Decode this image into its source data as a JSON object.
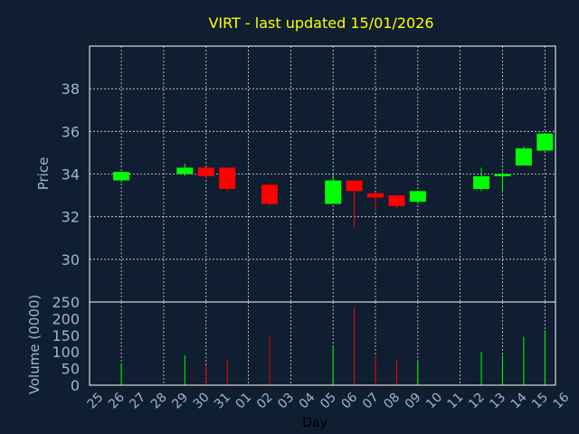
{
  "chart_data": {
    "type": "candlestick",
    "title": "VIRT - last updated 15/01/2026",
    "xlabel": "Day",
    "colors": {
      "background": "#0f1e30",
      "up": "#00ff00",
      "down": "#ff0000",
      "title": "#ffff00",
      "tick": "#9fb5cf",
      "grid": "#ffffff"
    },
    "grid": true,
    "x_ticks": [
      "25",
      "26",
      "27",
      "28",
      "29",
      "30",
      "31",
      "01",
      "02",
      "03",
      "04",
      "05",
      "06",
      "07",
      "08",
      "09",
      "10",
      "11",
      "12",
      "13",
      "14",
      "15",
      "16"
    ],
    "price_panel": {
      "ylabel": "Price",
      "ylim": [
        28,
        40
      ],
      "yticks": [
        "30",
        "32",
        "34",
        "36",
        "38"
      ]
    },
    "volume_panel": {
      "ylabel": "Volume (0000)",
      "ylim": [
        0,
        250
      ],
      "yticks": [
        "0",
        "50",
        "100",
        "150",
        "200",
        "250"
      ]
    },
    "candles": [
      {
        "day": "26",
        "open": 33.7,
        "high": 34.1,
        "low": 33.6,
        "close": 34.1,
        "volume": 65
      },
      {
        "day": "29",
        "open": 34.0,
        "high": 34.5,
        "low": 33.9,
        "close": 34.3,
        "volume": 90
      },
      {
        "day": "30",
        "open": 34.3,
        "high": 34.3,
        "low": 33.8,
        "close": 33.9,
        "volume": 60
      },
      {
        "day": "31",
        "open": 34.3,
        "high": 34.3,
        "low": 33.2,
        "close": 33.3,
        "volume": 75
      },
      {
        "day": "02",
        "open": 33.5,
        "high": 33.6,
        "low": 32.5,
        "close": 32.6,
        "volume": 150
      },
      {
        "day": "05",
        "open": 32.6,
        "high": 34.0,
        "low": 32.6,
        "close": 33.7,
        "volume": 120
      },
      {
        "day": "06",
        "open": 33.7,
        "high": 33.7,
        "low": 31.5,
        "close": 33.2,
        "volume": 235
      },
      {
        "day": "07",
        "open": 33.1,
        "high": 33.1,
        "low": 32.3,
        "close": 32.9,
        "volume": 90
      },
      {
        "day": "08",
        "open": 33.0,
        "high": 33.0,
        "low": 32.4,
        "close": 32.5,
        "volume": 75
      },
      {
        "day": "09",
        "open": 32.7,
        "high": 33.2,
        "low": 32.6,
        "close": 33.2,
        "volume": 75
      },
      {
        "day": "12",
        "open": 33.3,
        "high": 34.3,
        "low": 33.2,
        "close": 33.9,
        "volume": 100
      },
      {
        "day": "13",
        "open": 33.9,
        "high": 34.1,
        "low": 33.2,
        "close": 34.0,
        "volume": 90
      },
      {
        "day": "14",
        "open": 34.4,
        "high": 35.3,
        "low": 34.4,
        "close": 35.2,
        "volume": 145
      },
      {
        "day": "15",
        "open": 35.1,
        "high": 35.9,
        "low": 35.1,
        "close": 35.9,
        "volume": 165
      }
    ]
  }
}
